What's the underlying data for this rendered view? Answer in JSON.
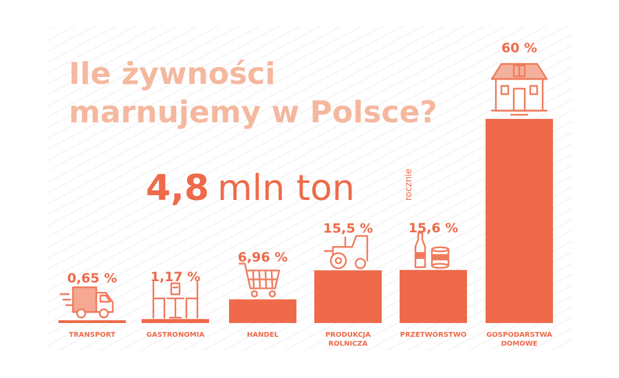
{
  "title_lines": [
    "Ile żywności",
    "marnujemy w Polsce?"
  ],
  "headline": {
    "value": "4,8",
    "unit": "mln ton",
    "note": "rocznie"
  },
  "colors": {
    "accent": "#ee6a4a",
    "title": "#f4b89f",
    "stripes": "#ececec",
    "icon": "#ef7b5c"
  },
  "chart_data": {
    "type": "bar",
    "categories": [
      {
        "name": "TRANSPORT",
        "lines": [
          "TRANSPORT"
        ],
        "icon": "truck-icon"
      },
      {
        "name": "GASTRONOMIA",
        "lines": [
          "GASTRONOMIA"
        ],
        "icon": "restaurant-table-icon"
      },
      {
        "name": "HANDEL",
        "lines": [
          "HANDEL"
        ],
        "icon": "shopping-cart-icon"
      },
      {
        "name": "PRODUKCJA ROLNICZA",
        "lines": [
          "PRODUKCJA",
          "ROLNICZA"
        ],
        "icon": "tractor-icon"
      },
      {
        "name": "PRZETWÓRSTWO",
        "lines": [
          "PRZETWÓRSTWO"
        ],
        "icon": "bottle-and-can-icon"
      },
      {
        "name": "GOSPODARSTWA DOMOWE",
        "lines": [
          "GOSPODARSTWA",
          "DOMOWE"
        ],
        "icon": "house-icon"
      }
    ],
    "values": [
      0.65,
      1.17,
      6.96,
      15.5,
      15.6,
      60
    ],
    "labels": [
      "0,65 %",
      "1,17 %",
      "6,96 %",
      "15,5 %",
      "15,6 %",
      "60 %"
    ],
    "unit": "%",
    "ylim": [
      0,
      60
    ],
    "grid": false,
    "legend": "none"
  }
}
